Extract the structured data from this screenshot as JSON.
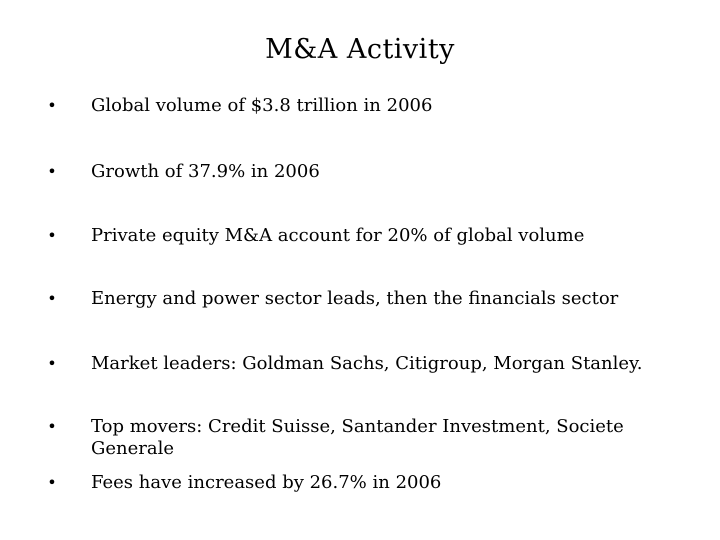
{
  "slide": {
    "title": "M&A Activity",
    "bullet_glyph": "•",
    "bullets": [
      {
        "text": "Global volume of $3.8 trillion in 2006"
      },
      {
        "text": "Growth of 37.9% in 2006"
      },
      {
        "text": "Private equity M&A account for 20% of global volume"
      },
      {
        "text": "Energy and power sector leads, then the financials sector"
      },
      {
        "text": "Market leaders: Goldman Sachs, Citigroup, Morgan Stanley."
      },
      {
        "text": "Top movers: Credit Suisse, Santander Investment, Societe Generale"
      },
      {
        "text": "Fees have increased by 26.7% in 2006"
      }
    ]
  }
}
